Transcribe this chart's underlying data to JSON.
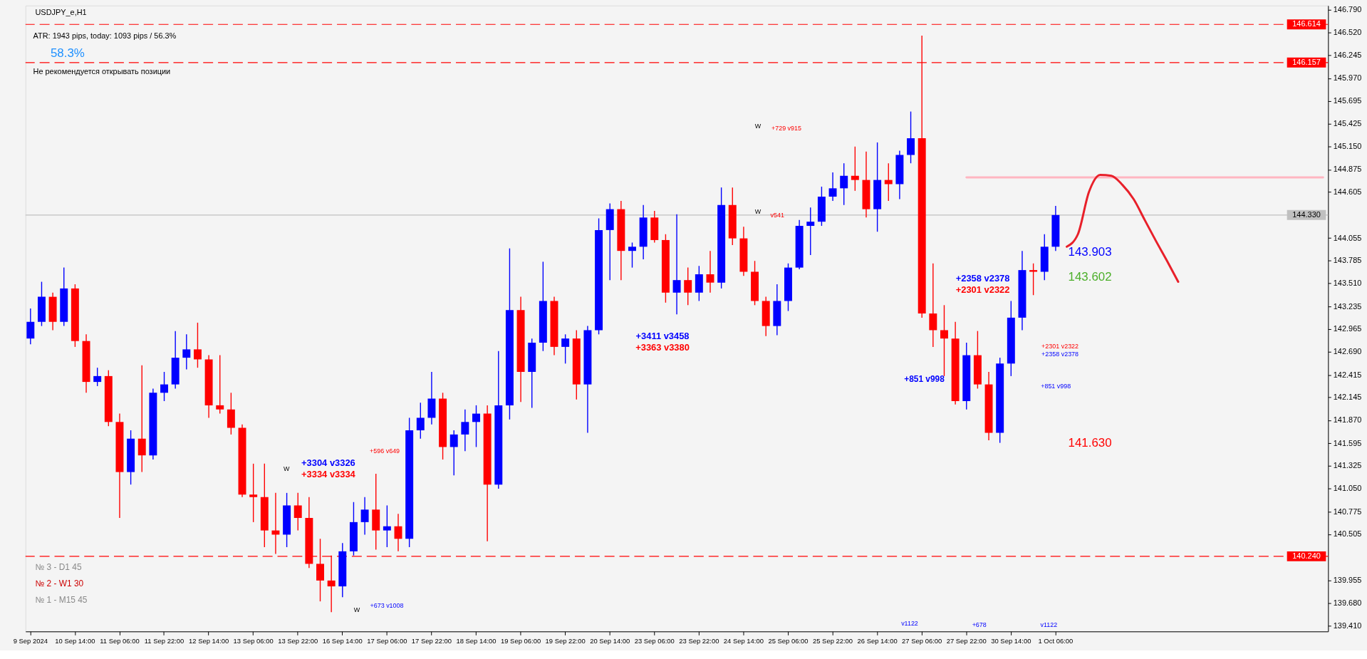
{
  "chart_data": {
    "type": "candlestick",
    "title": "USDJPY_e,H1",
    "categories": [
      "9 Sep 2024",
      null,
      null,
      null,
      "10 Sep 14:00",
      null,
      null,
      null,
      "11 Sep 06:00",
      null,
      null,
      null,
      "11 Sep 22:00",
      null,
      null,
      null,
      "12 Sep 14:00",
      null,
      null,
      null,
      "13 Sep 06:00",
      null,
      null,
      null,
      "13 Sep 22:00",
      null,
      null,
      null,
      "16 Sep 14:00",
      null,
      null,
      null,
      "17 Sep 06:00",
      null,
      null,
      null,
      "17 Sep 22:00",
      null,
      null,
      null,
      "18 Sep 14:00",
      null,
      null,
      null,
      "19 Sep 06:00",
      null,
      null,
      null,
      "19 Sep 22:00",
      null,
      null,
      null,
      "20 Sep 14:00",
      null,
      null,
      null,
      "23 Sep 06:00",
      null,
      null,
      null,
      "23 Sep 22:00",
      null,
      null,
      null,
      "24 Sep 14:00",
      null,
      null,
      null,
      "25 Sep 06:00",
      null,
      null,
      null,
      "25 Sep 22:00",
      null,
      null,
      null,
      "26 Sep 14:00",
      null,
      null,
      null,
      "27 Sep 06:00",
      null,
      null,
      null,
      "27 Sep 22:00",
      null,
      null,
      null,
      "30 Sep 14:00",
      null,
      null,
      null,
      "1 Oct 06:00",
      null,
      null,
      null,
      null,
      null,
      null,
      null,
      null,
      null,
      null,
      null,
      null,
      null,
      null,
      null,
      null,
      null,
      null,
      null,
      null,
      null,
      null,
      null,
      null
    ],
    "ohlc": [
      [
        142.85,
        143.21,
        142.78,
        143.05
      ],
      [
        143.05,
        143.53,
        143.0,
        143.35
      ],
      [
        143.35,
        143.4,
        142.95,
        143.05
      ],
      [
        143.05,
        143.7,
        143.0,
        143.45
      ],
      [
        143.45,
        143.5,
        142.75,
        142.82
      ],
      [
        142.82,
        142.9,
        142.2,
        142.33
      ],
      [
        142.33,
        142.5,
        142.28,
        142.4
      ],
      [
        142.4,
        142.47,
        141.8,
        141.85
      ],
      [
        141.85,
        141.95,
        140.7,
        141.25
      ],
      [
        141.25,
        141.75,
        141.1,
        141.65
      ],
      [
        141.65,
        142.53,
        141.25,
        141.45
      ],
      [
        141.45,
        142.25,
        141.4,
        142.2
      ],
      [
        142.2,
        142.45,
        142.1,
        142.3
      ],
      [
        142.3,
        142.94,
        142.25,
        142.62
      ],
      [
        142.62,
        142.9,
        142.48,
        142.72
      ],
      [
        142.72,
        143.04,
        142.5,
        142.6
      ],
      [
        142.6,
        142.65,
        141.9,
        142.05
      ],
      [
        142.05,
        142.65,
        141.95,
        142.0
      ],
      [
        142.0,
        142.2,
        141.7,
        141.78
      ],
      [
        141.78,
        141.82,
        140.95,
        140.98
      ],
      [
        140.98,
        141.35,
        140.65,
        140.95
      ],
      [
        140.95,
        141.35,
        140.35,
        140.55
      ],
      [
        140.55,
        141.0,
        140.27,
        140.5
      ],
      [
        140.5,
        141.0,
        140.35,
        140.85
      ],
      [
        140.85,
        141.0,
        140.55,
        140.7
      ],
      [
        140.7,
        140.95,
        140.1,
        140.15
      ],
      [
        140.15,
        140.45,
        139.7,
        139.95
      ],
      [
        139.95,
        140.25,
        139.57,
        139.88
      ],
      [
        139.88,
        140.4,
        139.75,
        140.3
      ],
      [
        140.3,
        140.89,
        140.25,
        140.65
      ],
      [
        140.65,
        140.95,
        140.5,
        140.8
      ],
      [
        140.8,
        141.23,
        140.32,
        140.55
      ],
      [
        140.55,
        140.85,
        140.35,
        140.6
      ],
      [
        140.6,
        140.75,
        140.3,
        140.45
      ],
      [
        140.45,
        141.9,
        140.35,
        141.75
      ],
      [
        141.75,
        142.08,
        141.65,
        141.9
      ],
      [
        141.9,
        142.45,
        141.82,
        142.13
      ],
      [
        142.13,
        142.2,
        141.4,
        141.55
      ],
      [
        141.55,
        141.75,
        141.21,
        141.7
      ],
      [
        141.7,
        142.0,
        141.5,
        141.85
      ],
      [
        141.85,
        142.05,
        141.55,
        141.95
      ],
      [
        141.95,
        142.05,
        140.42,
        141.1
      ],
      [
        141.1,
        142.7,
        141.05,
        142.05
      ],
      [
        142.05,
        143.93,
        141.88,
        143.19
      ],
      [
        143.19,
        143.35,
        142.09,
        142.45
      ],
      [
        142.45,
        142.85,
        142.02,
        142.8
      ],
      [
        142.8,
        143.77,
        142.7,
        143.3
      ],
      [
        143.3,
        143.35,
        142.65,
        142.75
      ],
      [
        142.75,
        142.9,
        142.55,
        142.85
      ],
      [
        142.85,
        142.95,
        142.12,
        142.3
      ],
      [
        142.3,
        143.0,
        141.72,
        142.95
      ],
      [
        142.95,
        144.29,
        142.9,
        144.15
      ],
      [
        144.15,
        144.47,
        143.55,
        144.4
      ],
      [
        144.4,
        144.5,
        143.55,
        143.9
      ],
      [
        143.9,
        144.0,
        143.7,
        143.95
      ],
      [
        143.95,
        144.45,
        143.8,
        144.3
      ],
      [
        144.3,
        144.38,
        144.0,
        144.03
      ],
      [
        144.03,
        144.1,
        143.28,
        143.4
      ],
      [
        143.4,
        144.34,
        143.14,
        143.55
      ],
      [
        143.55,
        143.7,
        143.25,
        143.4
      ],
      [
        143.4,
        143.72,
        143.3,
        143.62
      ],
      [
        143.62,
        143.9,
        143.4,
        143.52
      ],
      [
        143.52,
        144.66,
        143.45,
        144.45
      ],
      [
        144.45,
        144.66,
        143.97,
        144.05
      ],
      [
        144.05,
        144.19,
        143.6,
        143.65
      ],
      [
        143.65,
        143.78,
        143.25,
        143.3
      ],
      [
        143.3,
        143.35,
        142.88,
        143.0
      ],
      [
        143.0,
        143.5,
        142.89,
        143.3
      ],
      [
        143.3,
        143.75,
        143.18,
        143.7
      ],
      [
        143.7,
        144.27,
        143.68,
        144.2
      ],
      [
        144.2,
        144.42,
        143.85,
        144.25
      ],
      [
        144.25,
        144.67,
        144.2,
        144.55
      ],
      [
        144.55,
        144.84,
        144.5,
        144.65
      ],
      [
        144.65,
        144.95,
        144.45,
        144.8
      ],
      [
        144.8,
        145.15,
        144.62,
        144.75
      ],
      [
        144.75,
        145.09,
        144.3,
        144.4
      ],
      [
        144.4,
        145.2,
        144.13,
        144.75
      ],
      [
        144.75,
        144.95,
        144.5,
        144.7
      ],
      [
        144.7,
        145.1,
        144.52,
        145.05
      ],
      [
        145.05,
        145.57,
        144.95,
        145.25
      ],
      [
        145.25,
        146.48,
        143.1,
        143.15
      ],
      [
        143.15,
        143.75,
        142.75,
        142.95
      ],
      [
        142.95,
        143.25,
        142.4,
        142.85
      ],
      [
        142.85,
        143.05,
        142.06,
        142.1
      ],
      [
        142.1,
        142.8,
        142.0,
        142.65
      ],
      [
        142.65,
        142.94,
        142.25,
        142.3
      ],
      [
        142.3,
        142.45,
        141.63,
        141.72
      ],
      [
        141.72,
        142.62,
        141.6,
        142.55
      ],
      [
        142.55,
        143.3,
        142.4,
        143.1
      ],
      [
        143.1,
        143.9,
        142.95,
        143.67
      ],
      [
        143.67,
        143.75,
        143.37,
        143.65
      ],
      [
        143.65,
        144.1,
        143.55,
        143.95
      ],
      [
        143.95,
        144.44,
        143.9,
        144.33
      ],
      null,
      null,
      null,
      null,
      null,
      null,
      null,
      null,
      null,
      null,
      null,
      null,
      null,
      null,
      null,
      null,
      null,
      null,
      null,
      null,
      null,
      null,
      null,
      null
    ],
    "colors": [
      "#0000ff",
      "#0000ff",
      "#ff0000",
      "#0000ff",
      "#ff0000",
      "#ff0000",
      "#0000ff",
      "#ff0000",
      "#ff0000",
      "#0000ff",
      "#ff0000",
      "#0000ff",
      "#0000ff",
      "#0000ff",
      "#0000ff",
      "#ff0000",
      "#ff0000",
      "#ff0000",
      "#ff0000",
      "#ff0000",
      "#ff0000",
      "#ff0000",
      "#ff0000",
      "#0000ff",
      "#ff0000",
      "#ff0000",
      "#ff0000",
      "#ff0000",
      "#0000ff",
      "#0000ff",
      "#0000ff",
      "#ff0000",
      "#0000ff",
      "#ff0000",
      "#0000ff",
      "#0000ff",
      "#0000ff",
      "#ff0000",
      "#0000ff",
      "#0000ff",
      "#0000ff",
      "#ff0000",
      "#0000ff",
      "#0000ff",
      "#ff0000",
      "#0000ff",
      "#0000ff",
      "#ff0000",
      "#0000ff",
      "#ff0000",
      "#0000ff",
      "#0000ff",
      "#0000ff",
      "#ff0000",
      "#0000ff",
      "#0000ff",
      "#ff0000",
      "#ff0000",
      "#0000ff",
      "#ff0000",
      "#0000ff",
      "#ff0000",
      "#0000ff",
      "#ff0000",
      "#ff0000",
      "#ff0000",
      "#ff0000",
      "#0000ff",
      "#0000ff",
      "#0000ff",
      "#0000ff",
      "#0000ff",
      "#0000ff",
      "#0000ff",
      "#ff0000",
      "#ff0000",
      "#0000ff",
      "#ff0000",
      "#0000ff",
      "#0000ff",
      "#ff0000",
      "#ff0000",
      "#ff0000",
      "#ff0000",
      "#0000ff",
      "#ff0000",
      "#ff0000",
      "#0000ff",
      "#0000ff",
      "#0000ff",
      "#ff0000",
      "#0000ff",
      "#0000ff",
      null,
      null,
      null,
      null,
      null,
      null,
      null,
      null,
      null,
      null,
      null,
      null,
      null,
      null,
      null,
      null,
      null,
      null,
      null,
      null,
      null,
      null,
      null,
      null
    ],
    "series": [
      {
        "type": "line",
        "color": "#ffb6c1",
        "values": [
          null,
          null,
          null,
          null,
          null,
          null,
          null,
          null,
          null,
          null,
          null,
          null,
          null,
          null,
          null,
          null,
          null,
          null,
          null,
          null,
          null,
          null,
          null,
          null,
          null,
          null,
          null,
          null,
          null,
          null,
          null,
          null,
          null,
          null,
          null,
          null,
          null,
          null,
          null,
          null,
          null,
          null,
          null,
          null,
          null,
          null,
          null,
          null,
          null,
          null,
          null,
          null,
          null,
          null,
          null,
          null,
          null,
          null,
          null,
          null,
          null,
          null,
          null,
          null,
          null,
          null,
          null,
          null,
          null,
          null,
          null,
          null,
          null,
          null,
          null,
          null,
          null,
          null,
          null,
          null,
          null,
          null,
          null,
          null,
          144.78,
          144.78,
          144.78,
          144.78,
          144.78,
          144.78,
          144.78,
          144.78,
          144.78,
          144.78,
          144.78,
          144.78,
          144.78,
          144.78,
          144.78,
          144.78,
          144.78,
          144.78,
          144.78,
          144.78,
          144.78,
          144.78,
          144.78,
          144.78,
          144.78,
          144.78,
          144.78,
          144.78,
          144.78,
          144.78,
          144.78,
          144.78,
          144.78
        ]
      },
      {
        "type": "line",
        "color": "#e8202a",
        "values": [
          null,
          null,
          null,
          null,
          null,
          null,
          null,
          null,
          null,
          null,
          null,
          null,
          null,
          null,
          null,
          null,
          null,
          null,
          null,
          null,
          null,
          null,
          null,
          null,
          null,
          null,
          null,
          null,
          null,
          null,
          null,
          null,
          null,
          null,
          null,
          null,
          null,
          null,
          null,
          null,
          null,
          null,
          null,
          null,
          null,
          null,
          null,
          null,
          null,
          null,
          null,
          null,
          null,
          null,
          null,
          null,
          null,
          null,
          null,
          null,
          null,
          null,
          null,
          null,
          null,
          null,
          null,
          null,
          null,
          null,
          null,
          null,
          null,
          null,
          null,
          null,
          null,
          null,
          null,
          null,
          null,
          null,
          null,
          null,
          null,
          null,
          null,
          null,
          null,
          null,
          null,
          null,
          null,
          143.95,
          144.1,
          144.61,
          144.81,
          144.8,
          144.69,
          144.52,
          144.27,
          144.02,
          143.78,
          143.53,
          null,
          null,
          null,
          null,
          null,
          null,
          null,
          null,
          null,
          null,
          null,
          null,
          null
        ]
      }
    ],
    "ylim": [
      139.34,
      146.84
    ],
    "yticks": [
      {
        "value": 146.79,
        "label": "146.790"
      },
      {
        "value": 146.52,
        "label": "146.520"
      },
      146.245,
      {
        "value": 145.97,
        "label": "145.970"
      },
      145.695,
      145.425,
      {
        "value": 145.15,
        "label": "145.150"
      },
      144.875,
      144.605,
      144.055,
      143.785,
      {
        "value": 143.51,
        "label": "143.510"
      },
      143.235,
      142.965,
      {
        "value": 142.69,
        "label": "142.690"
      },
      142.415,
      142.145,
      {
        "value": 141.87,
        "label": "141.870"
      },
      141.595,
      141.325,
      {
        "value": 141.05,
        "label": "141.050"
      },
      140.775,
      140.505,
      139.955,
      {
        "value": 139.68,
        "label": "139.680"
      },
      {
        "value": 139.41,
        "label": "139.410"
      }
    ],
    "ref_lines": [
      {
        "axis": "y",
        "value": 146.614,
        "label": "146.614",
        "color": "#ff0000",
        "line_style": "dashed"
      },
      {
        "axis": "y",
        "value": 146.157,
        "label": "146.157",
        "color": "#ff0000",
        "line_style": "dashed"
      },
      {
        "axis": "y",
        "value": 144.33,
        "label": "144.330",
        "color": "#c0c0c0",
        "line_style": "solid"
      },
      {
        "axis": "y",
        "value": 140.24,
        "label": "140.240",
        "color": "#ff0000",
        "line_style": "dashed"
      }
    ],
    "annotations": [
      "ATR: 1943 pips, today: 1093 pips / 56.3%",
      "58.3%",
      "Не рекомендуется открывать позиции",
      "№ 3 - D1 45",
      "№ 2 - W1 30",
      "№ 1 - M15 45",
      "143.903",
      "143.602",
      "141.630",
      "+3411 v3458",
      "+3363 v3380",
      "+729 v915",
      "W",
      "v541",
      "W",
      "+596 v649",
      "+3304 v3326",
      "+3334 v3334",
      "W",
      "+673 v1008",
      "W",
      "+851 v998",
      "+2358 v2378",
      "+2301 v2322",
      "+2301 v2322",
      "+2358 v2378",
      "+851 v998",
      "v1122",
      "+678",
      "v1122"
    ]
  }
}
